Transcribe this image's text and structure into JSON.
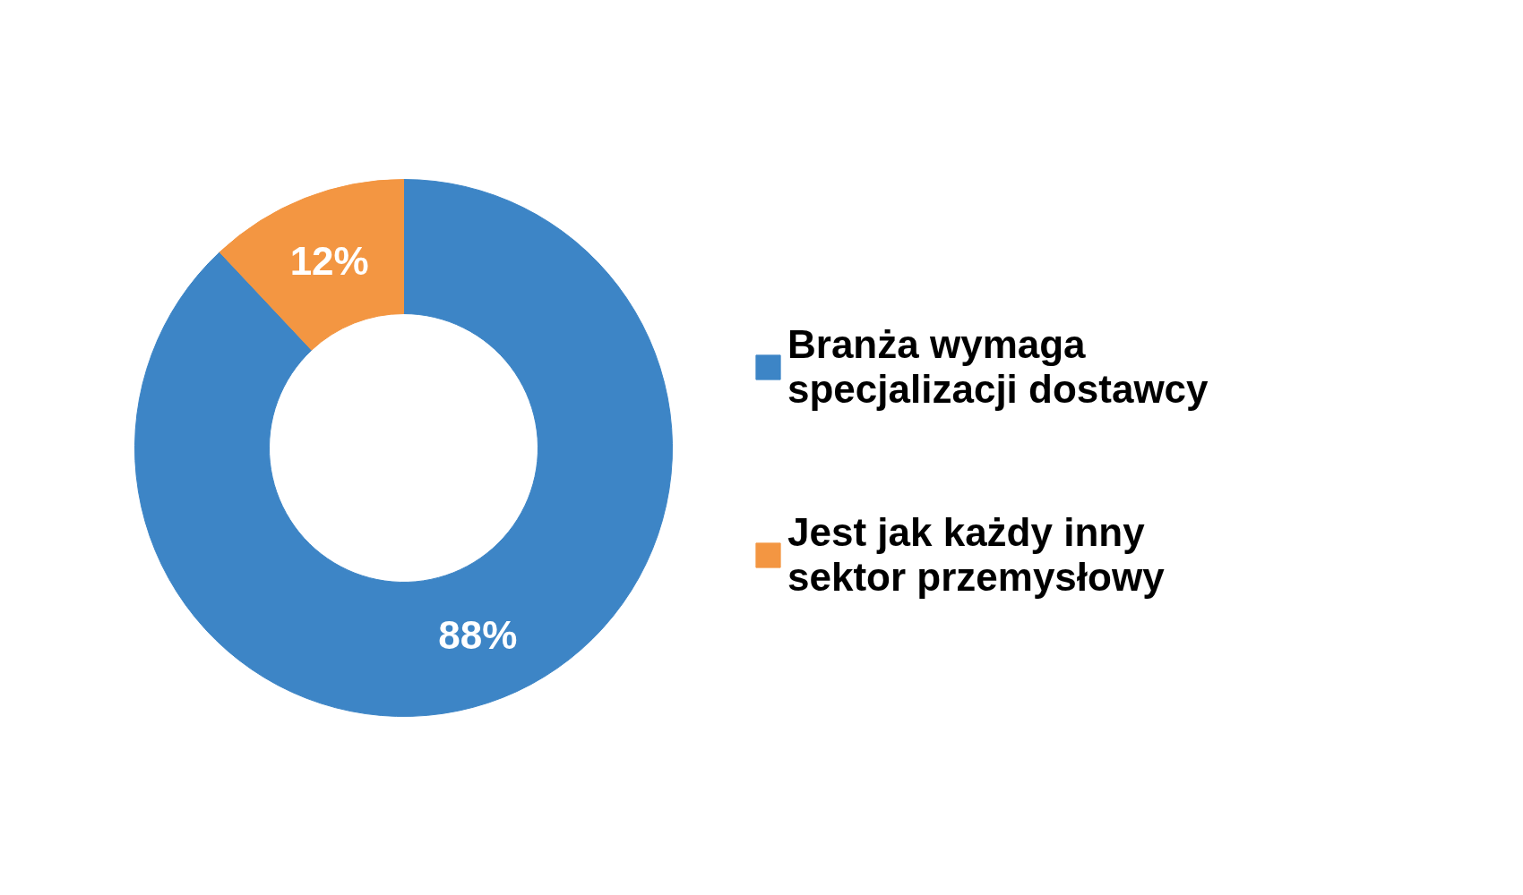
{
  "chart_data": {
    "type": "donut",
    "categories": [
      "Branża wymaga\nspecjalizacji dostawcy",
      "Jest jak każdy inny\nsektor przemysłowy"
    ],
    "values": [
      88,
      12
    ],
    "colors": [
      "#3d85c6",
      "#f39642"
    ],
    "value_labels": [
      "88%",
      "12%"
    ],
    "legend": "right"
  }
}
